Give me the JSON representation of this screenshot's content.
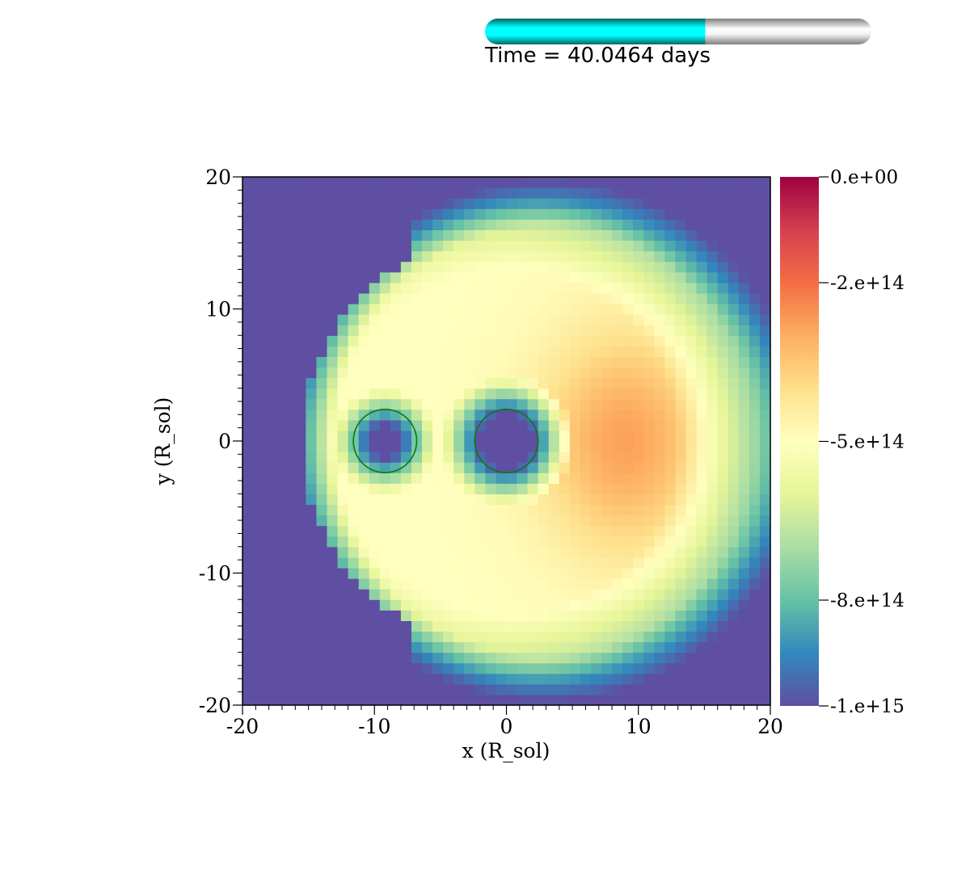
{
  "time": {
    "label": "Time = 40.0464 days",
    "progress": 0.57,
    "fill_color": "#00e5e5",
    "track_color": "#d0d0d0"
  },
  "chart_data": {
    "type": "heatmap",
    "xlabel": "x (R_sol)",
    "ylabel": "y (R_sol)",
    "xlim": [
      -20,
      20
    ],
    "ylim": [
      -20,
      20
    ],
    "xticks": [
      "-20",
      "-10",
      "0",
      "10",
      "20"
    ],
    "yticks": [
      "20",
      "10",
      "0",
      "-10",
      "-20"
    ],
    "colorbar": {
      "range": [
        -1000000000000000.0,
        0
      ],
      "tick_labels": [
        "0.e+00",
        "-2.e+14",
        "-5.e+14",
        "-8.e+14",
        "-1.e+15"
      ],
      "colormap": [
        "#5e4fa2",
        "#3288bd",
        "#66c2a5",
        "#abdda4",
        "#e6f598",
        "#ffffbf",
        "#fee08b",
        "#fdae61",
        "#f46d43",
        "#d53e4f",
        "#9e0142"
      ]
    },
    "circles": [
      {
        "cx": -9.2,
        "cy": 0,
        "r": 2.4,
        "color": "#0a7a0a"
      },
      {
        "cx": 0,
        "cy": 0,
        "r": 2.4,
        "color": "#0a7a0a"
      }
    ]
  }
}
